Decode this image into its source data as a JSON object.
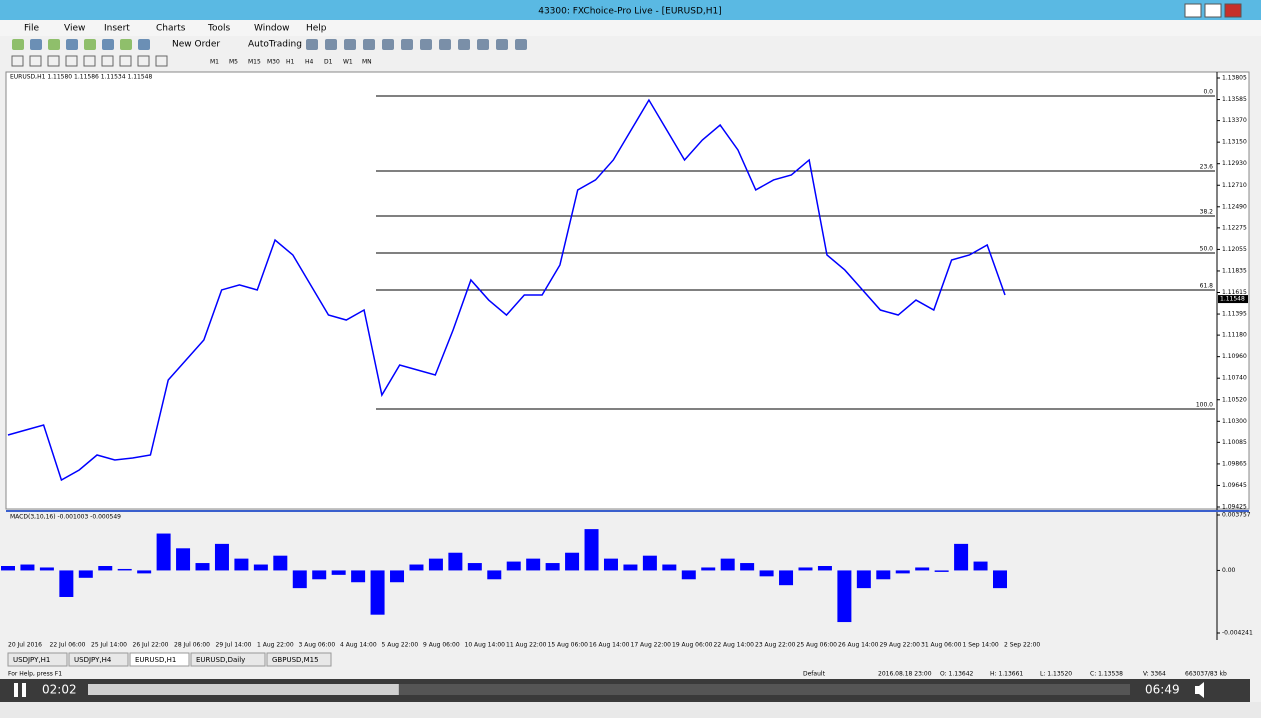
{
  "window": {
    "title": "43300: FXChoice-Pro Live - [EURUSD,H1]"
  },
  "menu": [
    "File",
    "View",
    "Insert",
    "Charts",
    "Tools",
    "Window",
    "Help"
  ],
  "toolbar": {
    "new_order": "New Order",
    "auto_trading": "AutoTrading",
    "timeframes": [
      "M1",
      "M5",
      "M15",
      "M30",
      "H1",
      "H4",
      "D1",
      "W1",
      "MN"
    ]
  },
  "chart_data": [
    {
      "type": "line",
      "title": "EURUSD,H1  1.11580 1.11586 1.11534 1.11548",
      "color": "#0000ff",
      "values": [
        1.1016,
        1.10211,
        1.10262,
        1.09701,
        1.09803,
        1.09956,
        1.09905,
        1.09925,
        1.09956,
        1.10722,
        1.10926,
        1.1113,
        1.11641,
        1.11692,
        1.11641,
        1.12151,
        1.11998,
        1.11692,
        1.11385,
        1.11334,
        1.11436,
        1.10568,
        1.10875,
        1.10824,
        1.10773,
        1.11232,
        1.11743,
        1.11538,
        1.11385,
        1.11589,
        1.11589,
        1.11896,
        1.12662,
        1.12764,
        1.12968,
        1.13274,
        1.1358,
        1.13274,
        1.12968,
        1.13172,
        1.13325,
        1.1307,
        1.12662,
        1.12764,
        1.12815,
        1.12968,
        1.11998,
        1.11845,
        1.11641,
        1.11436,
        1.11385,
        1.11538,
        1.11436,
        1.11947,
        1.11998,
        1.121,
        1.11589
      ],
      "time_labels": [
        "20 Jul 2016",
        "22 Jul 06:00",
        "25 Jul 14:00",
        "26 Jul 22:00",
        "28 Jul 06:00",
        "29 Jul 14:00",
        "1 Aug 22:00",
        "3 Aug 06:00",
        "4 Aug 14:00",
        "5 Aug 22:00",
        "9 Aug 06:00",
        "10 Aug 14:00",
        "11 Aug 22:00",
        "15 Aug 06:00",
        "16 Aug 14:00",
        "17 Aug 22:00",
        "19 Aug 06:00",
        "22 Aug 14:00",
        "23 Aug 22:00",
        "25 Aug 06:00",
        "26 Aug 14:00",
        "29 Aug 22:00",
        "31 Aug 06:00",
        "1 Sep 14:00",
        "2 Sep 22:00"
      ],
      "ylim": [
        1.09425,
        1.13805
      ],
      "yticks": [
        1.13805,
        1.13585,
        {
          "value": 1.1337,
          "label": "1.13370"
        },
        {
          "value": 1.1315,
          "label": "1.13150"
        },
        {
          "value": 1.1293,
          "label": "1.12930"
        },
        {
          "value": 1.1271,
          "label": "1.12710"
        },
        {
          "value": 1.1249,
          "label": "1.12490"
        },
        1.12275,
        1.12055,
        1.11835,
        1.11615,
        1.11395,
        {
          "value": 1.1118,
          "label": "1.11180"
        },
        {
          "value": 1.1096,
          "label": "1.10960"
        },
        {
          "value": 1.1074,
          "label": "1.10740"
        },
        {
          "value": 1.1052,
          "label": "1.10520"
        },
        {
          "value": 1.103,
          "label": "1.10300"
        },
        1.10085,
        1.09865,
        1.09645,
        1.09425
      ],
      "fib_levels": [
        {
          "label": "0.0",
          "value": 1.13621
        },
        {
          "label": "23.6",
          "value": 1.12855
        },
        {
          "label": "38.2",
          "value": 1.12396
        },
        {
          "label": "50.0",
          "value": 1.12018
        },
        {
          "label": "61.8",
          "value": 1.11641
        },
        {
          "label": "100.0",
          "value": 1.10426
        }
      ],
      "last_price": 1.11548
    },
    {
      "type": "bar",
      "title": "MACD(3,10,16) -0.001003 -0.000549",
      "color": "#0000ff",
      "values": [
        0.0003,
        0.0004,
        0.0002,
        -0.0018,
        -0.0005,
        0.0003,
        0.0001,
        -0.0002,
        0.0025,
        0.0015,
        0.0005,
        0.0018,
        0.0008,
        0.0004,
        0.001,
        -0.0012,
        -0.0006,
        -0.0003,
        -0.0008,
        -0.003,
        -0.0008,
        0.0004,
        0.0008,
        0.0012,
        0.0005,
        -0.0006,
        0.0006,
        0.0008,
        0.0005,
        0.0012,
        0.0028,
        0.0008,
        0.0004,
        0.001,
        0.0004,
        -0.0006,
        0.0002,
        0.0008,
        0.0005,
        -0.0004,
        -0.001,
        0.0002,
        0.0003,
        -0.0035,
        -0.0012,
        -0.0006,
        -0.0002,
        0.0002,
        -0.0001,
        0.0018,
        0.0006,
        -0.0012
      ],
      "ylim": [
        -0.004241,
        0.003757
      ],
      "yticks": [
        0.003757,
        {
          "value": 0,
          "label": "0.00"
        },
        -0.004241
      ]
    }
  ],
  "tabs": [
    "USDJPY,H1",
    "USDJPY,H4",
    "EURUSD,H1",
    "EURUSD,Daily",
    "GBPUSD,M15"
  ],
  "active_tab": 2,
  "status": {
    "help": "For Help, press F1",
    "profile": "Default",
    "time": "2016.08.18 23:00",
    "open": "O: 1.13642",
    "high": "H: 1.13661",
    "low": "L: 1.13520",
    "close": "C: 1.13538",
    "volume": "V: 3364",
    "traffic": "663037/83 kb"
  },
  "player": {
    "elapsed": "02:02",
    "duration": "06:49"
  }
}
